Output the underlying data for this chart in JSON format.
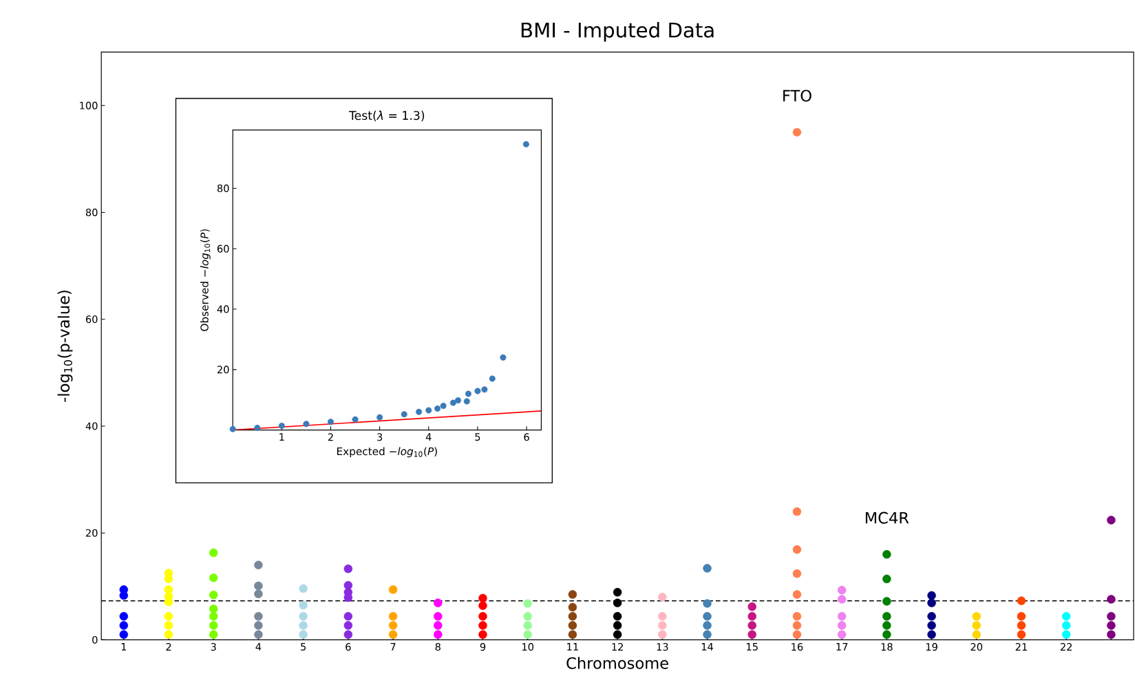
{
  "chart_data": [
    {
      "type": "scatter",
      "title": "BMI - Imputed Data",
      "xlabel": "Chromosome",
      "ylabel": "-log$_{10}$(p-value)",
      "marker": "circle",
      "categories": [
        "1",
        "2",
        "3",
        "4",
        "5",
        "6",
        "7",
        "8",
        "9",
        "10",
        "11",
        "12",
        "13",
        "14",
        "15",
        "16",
        "17",
        "18",
        "19",
        "20",
        "21",
        "22",
        null
      ],
      "ylim": [
        0,
        110
      ],
      "yticks": [
        0,
        20,
        40,
        60,
        80,
        100
      ],
      "ref_lines": [
        {
          "axis": "y",
          "value": 7.3,
          "color": "#000000",
          "line_style": "dashed"
        }
      ],
      "annotations": [
        {
          "text": "FTO",
          "x": "16",
          "y": 95
        },
        {
          "text": "MC4R",
          "x": "18",
          "y": 16.0
        }
      ],
      "series": [
        {
          "color": "#0000ff",
          "x": [
            "1",
            "1",
            "1",
            "1",
            "1"
          ],
          "values": [
            1,
            2.7,
            4.4,
            9.4,
            8.3
          ]
        },
        {
          "color": "#ffff00",
          "x": [
            "2",
            "2",
            "2",
            "2",
            "2",
            "2",
            "2",
            "2"
          ],
          "values": [
            1,
            2.7,
            4.4,
            11.4,
            12.5,
            9.4,
            7.1,
            8.1
          ]
        },
        {
          "color": "#7cfc00",
          "x": [
            "3",
            "3",
            "3",
            "3",
            "3",
            "3",
            "3"
          ],
          "values": [
            1,
            2.7,
            4.4,
            16.3,
            8.4,
            11.6,
            5.8
          ]
        },
        {
          "color": "#778899",
          "x": [
            "4",
            "4",
            "4",
            "4",
            "4",
            "4"
          ],
          "values": [
            1,
            2.7,
            4.4,
            14.0,
            10.1,
            8.6
          ]
        },
        {
          "color": "#add8e6",
          "x": [
            "5",
            "5",
            "5",
            "5",
            "5"
          ],
          "values": [
            1,
            2.7,
            4.4,
            9.6,
            6.5
          ]
        },
        {
          "color": "#8a2be2",
          "x": [
            "6",
            "6",
            "6",
            "6",
            "6",
            "6",
            "6"
          ],
          "values": [
            1,
            2.7,
            4.4,
            13.3,
            10.2,
            8.9,
            7.9
          ]
        },
        {
          "color": "#ffa500",
          "x": [
            "7",
            "7",
            "7",
            "7"
          ],
          "values": [
            1,
            2.7,
            4.4,
            9.4
          ]
        },
        {
          "color": "#ff00ff",
          "x": [
            "8",
            "8",
            "8",
            "8"
          ],
          "values": [
            1,
            2.7,
            4.4,
            6.9
          ]
        },
        {
          "color": "#ff0000",
          "x": [
            "9",
            "9",
            "9",
            "9",
            "9"
          ],
          "values": [
            1,
            2.7,
            4.4,
            7.8,
            6.4
          ]
        },
        {
          "color": "#98fb98",
          "x": [
            "10",
            "10",
            "10",
            "10"
          ],
          "values": [
            1,
            2.7,
            4.4,
            6.8
          ]
        },
        {
          "color": "#8b4513",
          "x": [
            "11",
            "11",
            "11",
            "11",
            "11"
          ],
          "values": [
            1,
            2.7,
            4.4,
            8.5,
            6.1
          ]
        },
        {
          "color": "#000000",
          "x": [
            "12",
            "12",
            "12",
            "12",
            "12"
          ],
          "values": [
            1,
            2.7,
            4.4,
            8.9,
            6.9
          ]
        },
        {
          "color": "#ffb6c1",
          "x": [
            "13",
            "13",
            "13",
            "13"
          ],
          "values": [
            1,
            2.7,
            4.4,
            8.0
          ]
        },
        {
          "color": "#4682b4",
          "x": [
            "14",
            "14",
            "14",
            "14",
            "14"
          ],
          "values": [
            1,
            2.7,
            4.4,
            13.4,
            6.8
          ]
        },
        {
          "color": "#c71585",
          "x": [
            "15",
            "15",
            "15",
            "15"
          ],
          "values": [
            1,
            2.7,
            4.4,
            6.2
          ]
        },
        {
          "color": "#ff7f50",
          "x": [
            "16",
            "16",
            "16",
            "16",
            "16",
            "16",
            "16",
            "16"
          ],
          "values": [
            1,
            2.7,
            4.4,
            95,
            24.0,
            16.9,
            12.4,
            8.5
          ]
        },
        {
          "color": "#ee82ee",
          "x": [
            "17",
            "17",
            "17",
            "17",
            "17"
          ],
          "values": [
            1,
            2.7,
            4.4,
            9.3,
            7.6
          ]
        },
        {
          "color": "#008000",
          "x": [
            "18",
            "18",
            "18",
            "18",
            "18",
            "18"
          ],
          "values": [
            1,
            2.7,
            4.4,
            16.0,
            11.4,
            7.2
          ]
        },
        {
          "color": "#000080",
          "x": [
            "19",
            "19",
            "19",
            "19",
            "19"
          ],
          "values": [
            1,
            2.7,
            4.4,
            8.3,
            6.9
          ]
        },
        {
          "color": "#ffd700",
          "x": [
            "20",
            "20",
            "20"
          ],
          "values": [
            1,
            2.7,
            4.4
          ]
        },
        {
          "color": "#ff4500",
          "x": [
            "21",
            "21",
            "21",
            "21"
          ],
          "values": [
            1,
            2.7,
            4.4,
            7.3
          ]
        },
        {
          "color": "#00ffff",
          "x": [
            "22",
            "22",
            "22"
          ],
          "values": [
            1,
            2.7,
            4.4
          ]
        },
        {
          "color": "#800080",
          "x": [
            null,
            null,
            null,
            null,
            null
          ],
          "values": [
            1,
            2.7,
            4.4,
            22.4,
            7.6
          ]
        }
      ]
    },
    {
      "type": "scatter",
      "title": "Test(*λ* = 1.3)",
      "xlabel": "Expected −*log*$_{10}$(*P*)",
      "ylabel": "Observed −*log*$_{10}$(*P*)",
      "xlim": [
        0,
        6.3
      ],
      "ylim": [
        0,
        99.3
      ],
      "xticks": [
        1,
        2,
        3,
        4,
        5,
        6
      ],
      "yticks": [
        20,
        40,
        60,
        80
      ],
      "series": [
        {
          "marker": "circle",
          "color": "#3a7bb8",
          "x": [
            0,
            0.5,
            1,
            1.5,
            2,
            2.5,
            3,
            3.5,
            3.8,
            4.0,
            4.18,
            4.3,
            4.5,
            4.6,
            4.78,
            4.81,
            5.0,
            5.14,
            5.3,
            5.52,
            5.99
          ],
          "values": [
            0.3,
            0.7,
            1.4,
            2.0,
            2.7,
            3.5,
            4.2,
            5.2,
            6.0,
            6.5,
            7.1,
            8.0,
            9.0,
            9.8,
            9.5,
            12.0,
            12.9,
            13.4,
            17.0,
            24.0,
            94.6
          ]
        },
        {
          "type": "line",
          "marker": "none",
          "color": "#ff0000",
          "x": [
            0,
            6.3
          ],
          "values": [
            0,
            6.3
          ]
        }
      ]
    }
  ]
}
